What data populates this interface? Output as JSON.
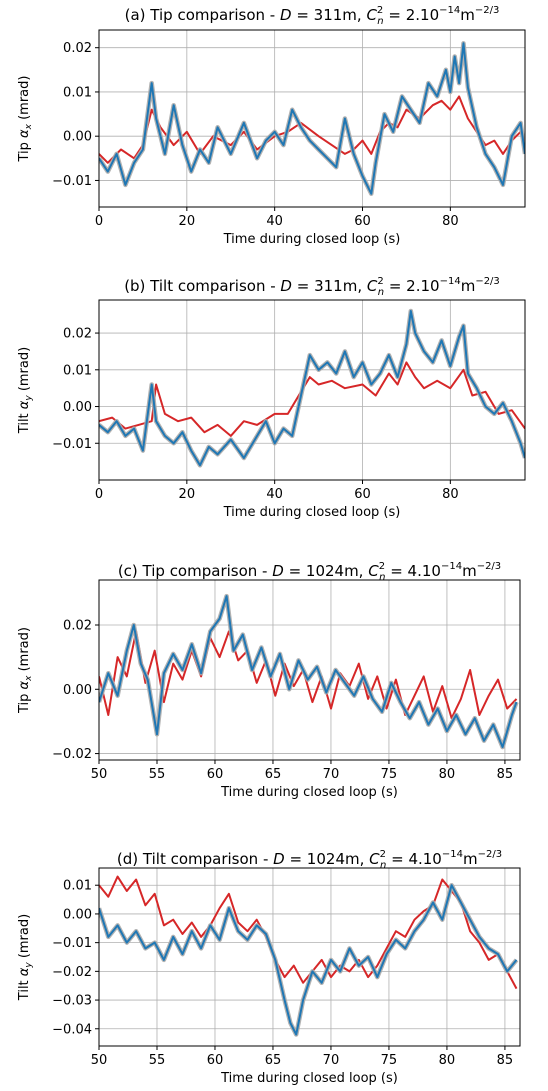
{
  "figure": {
    "panels": [
      {
        "title_prefix": "(a) Tip comparison - ",
        "title_D": "D",
        "title_D_value": " = 311m, ",
        "title_C": "C",
        "title_C_sup": "2",
        "title_C_sub": "n",
        "title_C_value": " = 2.10",
        "title_exp": "−14",
        "title_unit": "m",
        "title_unit_exp": "−2/3",
        "ylabel_prefix": "Tip ",
        "ylabel_alpha": "α",
        "ylabel_sub": "x",
        "ylabel_suffix": " (mrad)",
        "xlabel": "Time during closed loop (s)"
      },
      {
        "title_prefix": "(b) Tilt comparison - ",
        "title_D": "D",
        "title_D_value": " = 311m, ",
        "title_C": "C",
        "title_C_sup": "2",
        "title_C_sub": "n",
        "title_C_value": " = 2.10",
        "title_exp": "−14",
        "title_unit": "m",
        "title_unit_exp": "−2/3",
        "ylabel_prefix": "Tilt ",
        "ylabel_alpha": "α",
        "ylabel_sub": "y",
        "ylabel_suffix": " (mrad)",
        "xlabel": "Time during closed loop (s)"
      },
      {
        "title_prefix": "(c) Tip comparison - ",
        "title_D": "D",
        "title_D_value": " = 1024m, ",
        "title_C": "C",
        "title_C_sup": "2",
        "title_C_sub": "n",
        "title_C_value": " = 4.10",
        "title_exp": "−14",
        "title_unit": "m",
        "title_unit_exp": "−2/3",
        "ylabel_prefix": "Tip ",
        "ylabel_alpha": "α",
        "ylabel_sub": "x",
        "ylabel_suffix": " (mrad)",
        "xlabel": "Time during closed loop (s)"
      },
      {
        "title_prefix": "(d) Tilt comparison - ",
        "title_D": "D",
        "title_D_value": " = 1024m, ",
        "title_C": "C",
        "title_C_sup": "2",
        "title_C_sub": "n",
        "title_C_value": " = 4.10",
        "title_exp": "−14",
        "title_unit": "m",
        "title_unit_exp": "−2/3",
        "ylabel_prefix": "Tilt ",
        "ylabel_alpha": "α",
        "ylabel_sub": "y",
        "ylabel_suffix": " (mrad)",
        "xlabel": "Time during closed loop (s)"
      }
    ]
  },
  "chart_data": [
    {
      "type": "line",
      "xlim": [
        0,
        97
      ],
      "ylim": [
        -0.016,
        0.024
      ],
      "xticks": [
        0,
        20,
        40,
        60,
        80
      ],
      "xtick_labels": [
        "0",
        "20",
        "40",
        "60",
        "80"
      ],
      "yticks": [
        -0.01,
        0.0,
        0.01,
        0.02
      ],
      "ytick_labels": [
        "−0.01",
        "0.00",
        "0.01",
        "0.02"
      ],
      "grid": true,
      "colors": {
        "red": "#d62728",
        "blue": "#1f77b4",
        "band": "#aaaaaa"
      },
      "series": [
        {
          "color": "red",
          "x": [
            0,
            2,
            5,
            8,
            10,
            12,
            14,
            17,
            20,
            23,
            26,
            30,
            33,
            36,
            40,
            43,
            46,
            50,
            53,
            56,
            58,
            60,
            62,
            64,
            66,
            68,
            70,
            73,
            76,
            78,
            80,
            82,
            84,
            86,
            88,
            90,
            92,
            94,
            96,
            97
          ],
          "y": [
            -0.004,
            -0.006,
            -0.003,
            -0.005,
            -0.002,
            0.006,
            0.002,
            -0.002,
            0.001,
            -0.004,
            0.0,
            -0.002,
            0.001,
            -0.003,
            0.0,
            0.001,
            0.003,
            0.0,
            -0.002,
            -0.004,
            -0.003,
            -0.001,
            -0.004,
            0.001,
            0.003,
            0.002,
            0.006,
            0.004,
            0.007,
            0.008,
            0.006,
            0.009,
            0.004,
            0.001,
            -0.002,
            -0.001,
            -0.004,
            -0.001,
            0.001,
            -0.001
          ]
        },
        {
          "color": "blue",
          "x": [
            0,
            2,
            4,
            6,
            8,
            10,
            12,
            13,
            15,
            17,
            19,
            21,
            23,
            25,
            27,
            30,
            33,
            36,
            38,
            40,
            42,
            44,
            46,
            48,
            50,
            52,
            54,
            56,
            58,
            60,
            62,
            63,
            65,
            67,
            69,
            71,
            73,
            75,
            77,
            79,
            80,
            81,
            82,
            83,
            84,
            86,
            88,
            90,
            92,
            94,
            96,
            97
          ],
          "y": [
            -0.005,
            -0.008,
            -0.004,
            -0.011,
            -0.006,
            -0.003,
            0.012,
            0.004,
            -0.004,
            0.007,
            -0.002,
            -0.008,
            -0.003,
            -0.006,
            0.002,
            -0.004,
            0.003,
            -0.005,
            -0.001,
            0.001,
            -0.002,
            0.006,
            0.002,
            -0.001,
            -0.003,
            -0.005,
            -0.007,
            0.004,
            -0.004,
            -0.009,
            -0.013,
            -0.006,
            0.005,
            0.001,
            0.009,
            0.006,
            0.003,
            0.012,
            0.009,
            0.015,
            0.01,
            0.018,
            0.012,
            0.021,
            0.011,
            0.002,
            -0.004,
            -0.007,
            -0.011,
            0.0,
            0.003,
            -0.004
          ]
        }
      ]
    },
    {
      "type": "line",
      "xlim": [
        0,
        97
      ],
      "ylim": [
        -0.02,
        0.029
      ],
      "xticks": [
        0,
        20,
        40,
        60,
        80
      ],
      "xtick_labels": [
        "0",
        "20",
        "40",
        "60",
        "80"
      ],
      "yticks": [
        -0.01,
        0.0,
        0.01,
        0.02
      ],
      "ytick_labels": [
        "−0.01",
        "0.00",
        "0.01",
        "0.02"
      ],
      "grid": true,
      "colors": {
        "red": "#d62728",
        "blue": "#1f77b4",
        "band": "#aaaaaa"
      },
      "series": [
        {
          "color": "red",
          "x": [
            0,
            3,
            6,
            9,
            12,
            13,
            15,
            18,
            21,
            24,
            27,
            30,
            33,
            36,
            40,
            43,
            46,
            48,
            50,
            53,
            56,
            60,
            63,
            66,
            68,
            70,
            72,
            74,
            77,
            80,
            83,
            85,
            88,
            91,
            94,
            97
          ],
          "y": [
            -0.004,
            -0.003,
            -0.006,
            -0.005,
            -0.004,
            0.006,
            -0.002,
            -0.004,
            -0.003,
            -0.007,
            -0.005,
            -0.008,
            -0.004,
            -0.005,
            -0.002,
            -0.002,
            0.004,
            0.008,
            0.006,
            0.007,
            0.005,
            0.006,
            0.003,
            0.009,
            0.006,
            0.012,
            0.008,
            0.005,
            0.007,
            0.005,
            0.01,
            0.003,
            0.004,
            -0.002,
            -0.001,
            -0.006
          ]
        },
        {
          "color": "blue",
          "x": [
            0,
            2,
            4,
            6,
            8,
            10,
            12,
            13,
            15,
            17,
            19,
            21,
            23,
            25,
            27,
            30,
            33,
            36,
            38,
            40,
            42,
            44,
            46,
            48,
            50,
            52,
            54,
            56,
            58,
            60,
            62,
            64,
            66,
            68,
            70,
            71,
            72,
            74,
            76,
            78,
            80,
            82,
            83,
            84,
            86,
            88,
            90,
            92,
            94,
            96,
            97
          ],
          "y": [
            -0.005,
            -0.007,
            -0.004,
            -0.008,
            -0.006,
            -0.012,
            0.006,
            -0.004,
            -0.008,
            -0.01,
            -0.007,
            -0.012,
            -0.016,
            -0.011,
            -0.013,
            -0.009,
            -0.014,
            -0.008,
            -0.004,
            -0.01,
            -0.006,
            -0.008,
            0.003,
            0.014,
            0.01,
            0.012,
            0.009,
            0.015,
            0.008,
            0.012,
            0.006,
            0.009,
            0.014,
            0.008,
            0.017,
            0.026,
            0.02,
            0.015,
            0.012,
            0.018,
            0.011,
            0.019,
            0.022,
            0.009,
            0.005,
            0.0,
            -0.002,
            0.001,
            -0.004,
            -0.01,
            -0.014
          ]
        }
      ]
    },
    {
      "type": "line",
      "xlim": [
        50,
        86.3
      ],
      "ylim": [
        -0.022,
        0.034
      ],
      "xticks": [
        50,
        55,
        60,
        65,
        70,
        75,
        80,
        85
      ],
      "xtick_labels": [
        "50",
        "55",
        "60",
        "65",
        "70",
        "75",
        "80",
        "85"
      ],
      "yticks": [
        -0.02,
        0.0,
        0.02
      ],
      "ytick_labels": [
        "−0.02",
        "0.00",
        "0.02"
      ],
      "grid": true,
      "colors": {
        "red": "#d62728",
        "blue": "#1f77b4",
        "band": "#aaaaaa"
      },
      "series": [
        {
          "color": "red",
          "x": [
            50,
            50.8,
            51.6,
            52.4,
            53.2,
            54,
            54.8,
            55.6,
            56.4,
            57.2,
            58,
            58.8,
            59.6,
            60.4,
            61.2,
            62,
            62.8,
            63.6,
            64.4,
            65.2,
            66,
            66.8,
            67.6,
            68.4,
            69.2,
            70,
            70.8,
            71.6,
            72.4,
            73.2,
            74,
            74.8,
            75.6,
            76.4,
            77.2,
            78,
            78.8,
            79.6,
            80.4,
            81.2,
            82,
            82.8,
            83.6,
            84.4,
            85.2,
            86
          ],
          "y": [
            0.004,
            -0.008,
            0.01,
            0.004,
            0.018,
            0.002,
            0.012,
            -0.004,
            0.008,
            0.003,
            0.012,
            0.004,
            0.016,
            0.01,
            0.018,
            0.009,
            0.012,
            0.002,
            0.009,
            -0.002,
            0.008,
            0.001,
            0.006,
            -0.004,
            0.004,
            -0.006,
            0.005,
            0.001,
            0.008,
            -0.003,
            0.004,
            -0.006,
            0.003,
            -0.008,
            -0.002,
            0.004,
            -0.007,
            0.001,
            -0.009,
            -0.003,
            0.006,
            -0.008,
            -0.002,
            0.003,
            -0.006,
            -0.003
          ]
        },
        {
          "color": "blue",
          "x": [
            50,
            50.8,
            51.6,
            52.4,
            53,
            53.6,
            54.2,
            55,
            55.6,
            56.4,
            57.2,
            58,
            58.8,
            59.6,
            60.4,
            61,
            61.6,
            62.4,
            63.2,
            64,
            64.8,
            65.6,
            66.4,
            67.2,
            68,
            68.8,
            69.6,
            70.4,
            71.2,
            72,
            72.8,
            73.6,
            74.4,
            75.2,
            76,
            76.8,
            77.6,
            78.4,
            79.2,
            80,
            80.8,
            81.6,
            82.4,
            83.2,
            84,
            84.8,
            85.6,
            86
          ],
          "y": [
            -0.004,
            0.005,
            -0.002,
            0.012,
            0.02,
            0.008,
            0.003,
            -0.014,
            0.005,
            0.011,
            0.006,
            0.014,
            0.005,
            0.018,
            0.022,
            0.029,
            0.012,
            0.017,
            0.006,
            0.013,
            0.004,
            0.011,
            0.0,
            0.009,
            0.003,
            0.007,
            -0.001,
            0.006,
            0.002,
            -0.002,
            0.004,
            -0.003,
            -0.007,
            0.002,
            -0.004,
            -0.009,
            -0.004,
            -0.011,
            -0.006,
            -0.013,
            -0.008,
            -0.014,
            -0.009,
            -0.016,
            -0.011,
            -0.018,
            -0.008,
            -0.004
          ]
        }
      ]
    },
    {
      "type": "line",
      "xlim": [
        50,
        86.3
      ],
      "ylim": [
        -0.046,
        0.016
      ],
      "xticks": [
        50,
        55,
        60,
        65,
        70,
        75,
        80,
        85
      ],
      "xtick_labels": [
        "50",
        "55",
        "60",
        "65",
        "70",
        "75",
        "80",
        "85"
      ],
      "yticks": [
        -0.04,
        -0.03,
        -0.02,
        -0.01,
        0.0,
        0.01
      ],
      "ytick_labels": [
        "−0.04",
        "−0.03",
        "−0.02",
        "−0.01",
        "0.00",
        "0.01"
      ],
      "grid": true,
      "colors": {
        "red": "#d62728",
        "blue": "#1f77b4",
        "band": "#aaaaaa"
      },
      "series": [
        {
          "color": "red",
          "x": [
            50,
            50.8,
            51.6,
            52.4,
            53.2,
            54,
            54.8,
            55.6,
            56.4,
            57.2,
            58,
            58.8,
            59.6,
            60.4,
            61.2,
            62,
            62.8,
            63.6,
            64.4,
            65.2,
            66,
            66.8,
            67.6,
            68.4,
            69.2,
            70,
            70.8,
            71.6,
            72.4,
            73.2,
            74,
            74.8,
            75.6,
            76.4,
            77.2,
            78,
            78.8,
            79.6,
            80.4,
            81.2,
            82,
            82.8,
            83.6,
            84.4,
            85.2,
            86
          ],
          "y": [
            0.01,
            0.006,
            0.013,
            0.008,
            0.012,
            0.003,
            0.007,
            -0.004,
            -0.002,
            -0.007,
            -0.003,
            -0.008,
            -0.004,
            0.002,
            0.007,
            -0.003,
            -0.006,
            -0.002,
            -0.008,
            -0.016,
            -0.022,
            -0.018,
            -0.024,
            -0.02,
            -0.016,
            -0.022,
            -0.018,
            -0.02,
            -0.016,
            -0.022,
            -0.018,
            -0.012,
            -0.006,
            -0.008,
            -0.002,
            0.001,
            0.003,
            0.012,
            0.008,
            0.004,
            -0.006,
            -0.01,
            -0.016,
            -0.014,
            -0.02,
            -0.026
          ]
        },
        {
          "color": "blue",
          "x": [
            50,
            50.8,
            51.6,
            52.4,
            53.2,
            54,
            54.8,
            55.6,
            56.4,
            57.2,
            58,
            58.8,
            59.6,
            60.4,
            61.2,
            62,
            62.8,
            63.6,
            64.4,
            65.2,
            66,
            66.5,
            67,
            67.6,
            68.4,
            69.2,
            70,
            70.8,
            71.6,
            72.4,
            73.2,
            74,
            74.8,
            75.6,
            76.4,
            77.2,
            78,
            78.8,
            79.6,
            80.4,
            81.2,
            82,
            82.8,
            83.6,
            84.4,
            85.2,
            86
          ],
          "y": [
            0.002,
            -0.008,
            -0.004,
            -0.01,
            -0.006,
            -0.012,
            -0.01,
            -0.016,
            -0.008,
            -0.014,
            -0.006,
            -0.012,
            -0.004,
            -0.009,
            0.002,
            -0.006,
            -0.009,
            -0.004,
            -0.007,
            -0.016,
            -0.03,
            -0.038,
            -0.042,
            -0.03,
            -0.02,
            -0.024,
            -0.016,
            -0.02,
            -0.012,
            -0.018,
            -0.015,
            -0.022,
            -0.014,
            -0.009,
            -0.012,
            -0.006,
            -0.002,
            0.004,
            -0.002,
            0.01,
            0.004,
            -0.002,
            -0.008,
            -0.012,
            -0.014,
            -0.02,
            -0.016
          ]
        }
      ]
    }
  ]
}
